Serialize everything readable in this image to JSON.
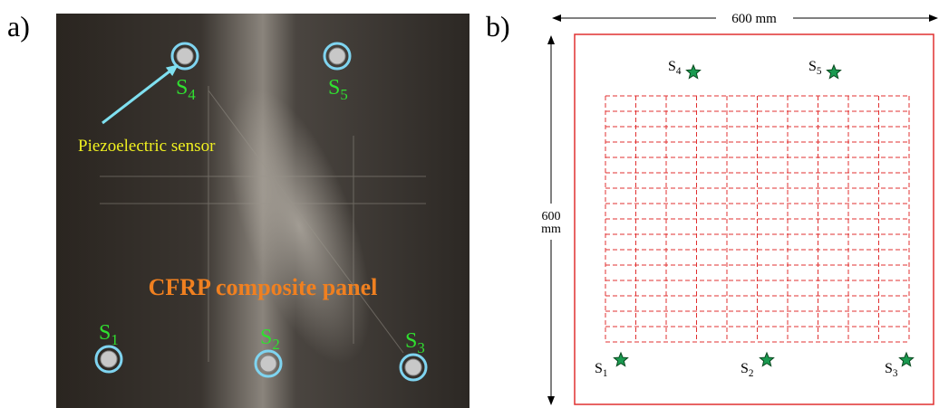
{
  "photo": {
    "label": "a)",
    "sensors": [
      {
        "letter": "S",
        "sub": "4"
      },
      {
        "letter": "S",
        "sub": "5"
      },
      {
        "letter": "S",
        "sub": "1"
      },
      {
        "letter": "S",
        "sub": "2"
      },
      {
        "letter": "S",
        "sub": "3"
      }
    ],
    "pointer_label": "Piezoelectric sensor",
    "panel_label": "CFRP composite panel"
  },
  "diagram": {
    "label": "b)",
    "width_label": "600 mm",
    "height_label": [
      "600",
      "mm"
    ],
    "sensors": [
      {
        "letter": "S",
        "sub": "4"
      },
      {
        "letter": "S",
        "sub": "5"
      },
      {
        "letter": "S",
        "sub": "1"
      },
      {
        "letter": "S",
        "sub": "2"
      },
      {
        "letter": "S",
        "sub": "3"
      }
    ]
  }
}
